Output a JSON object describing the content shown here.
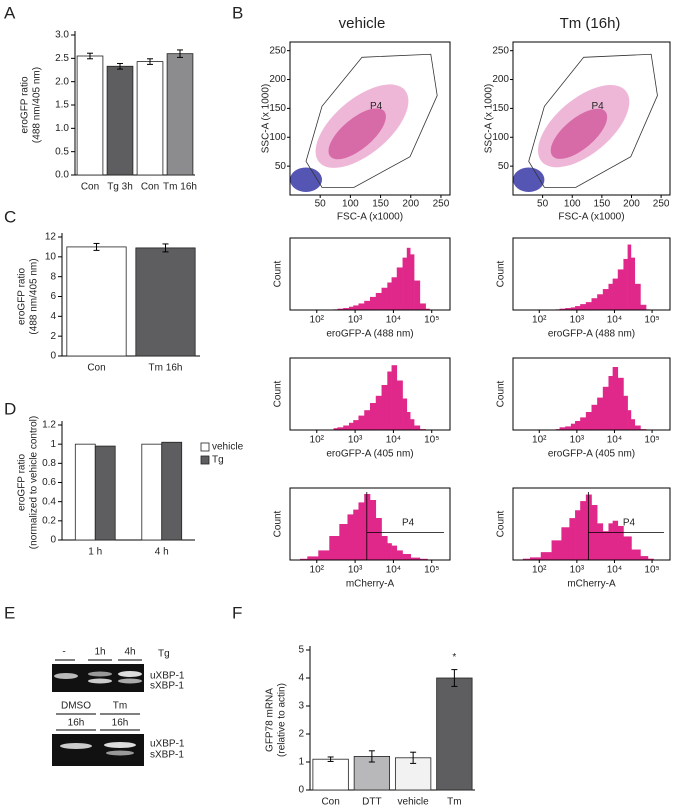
{
  "panel_labels": [
    "A",
    "B",
    "C",
    "D",
    "E",
    "F"
  ],
  "column_headers": [
    "vehicle",
    "Tm (16h)"
  ],
  "gel": {
    "top": {
      "lanes": [
        "-",
        "1h",
        "4h"
      ],
      "treatment": "Tg",
      "bands": [
        "uXBP-1",
        "sXBP-1"
      ]
    },
    "bottom": {
      "lanes": [
        "DMSO",
        "Tm"
      ],
      "times": [
        "16h",
        "16h"
      ],
      "bands": [
        "uXBP-1",
        "sXBP-1"
      ]
    }
  },
  "chart_data": [
    {
      "type": "bar",
      "ylabel": [
        "eroGFP ratio",
        "(488 nm/405 nm)"
      ],
      "categories": [
        "Con",
        "Tg 3h",
        "Con",
        "Tm 16h"
      ],
      "values": [
        2.55,
        2.33,
        2.43,
        2.6
      ],
      "errors": [
        0.06,
        0.06,
        0.06,
        0.08
      ],
      "colors": [
        "#ffffff",
        "#5e5e60",
        "#ffffff",
        "#8c8c8e"
      ],
      "ylim": [
        0,
        3
      ],
      "yticks": [
        {
          "value": 0,
          "label": "0.0"
        },
        0.5,
        {
          "value": 1,
          "label": "1.0"
        },
        1.5,
        {
          "value": 2,
          "label": "2.0"
        },
        2.5,
        {
          "value": 3,
          "label": "3.0"
        }
      ]
    },
    {
      "type": "bar",
      "ylabel": [
        "eroGFP ratio",
        "(488 nm/405 nm)"
      ],
      "categories": [
        "Con",
        "Tm 16h"
      ],
      "values": [
        11,
        10.9
      ],
      "errors": [
        0.35,
        0.4
      ],
      "colors": [
        "#ffffff",
        "#5e5e60"
      ],
      "ylim": [
        0,
        12
      ],
      "yticks": [
        0,
        2,
        4,
        6,
        8,
        10,
        12
      ]
    },
    {
      "type": "bar",
      "ylabel": [
        "eroGFP ratio",
        "(normalized to vehicle control)"
      ],
      "categories": [
        "1 h",
        "4 h"
      ],
      "series": [
        {
          "name": "vehicle",
          "color": "#ffffff",
          "values": [
            1,
            1
          ]
        },
        {
          "name": "Tg",
          "color": "#5e5e60",
          "values": [
            0.98,
            1.02
          ]
        }
      ],
      "ylim": [
        0,
        1.2
      ],
      "yticks": [
        0,
        0.2,
        0.4,
        0.6,
        0.8,
        1,
        1.2
      ]
    },
    {
      "type": "bar",
      "ylabel": [
        "GFP78 mRNA",
        "(relative to actin)"
      ],
      "categories": [
        "Con",
        "DTT",
        "vehicle",
        "Tm"
      ],
      "values": [
        1.1,
        1.2,
        1.15,
        4
      ],
      "errors": [
        0.08,
        0.2,
        0.2,
        0.3
      ],
      "colors": [
        "#ffffff",
        "#b8b8ba",
        "#f2f2f2",
        "#5e5e60"
      ],
      "annotation": "*",
      "ylim": [
        0,
        5
      ],
      "yticks": [
        0,
        1,
        2,
        3,
        4,
        5
      ]
    },
    {
      "type": "scatter",
      "xlabel": "FSC-A (x1000)",
      "ylabel": "SSC-A (x 1000)",
      "gate": "P4",
      "xlim": [
        0,
        265
      ],
      "ylim": [
        0,
        265
      ],
      "xticks": [
        50,
        100,
        150,
        200,
        250
      ],
      "yticks": [
        50,
        100,
        150,
        200,
        250
      ]
    },
    {
      "type": "scatter",
      "xlabel": "FSC-A (x1000)",
      "ylabel": "SSC-A (x 1000)",
      "gate": "P4",
      "xlim": [
        0,
        265
      ],
      "ylim": [
        0,
        265
      ],
      "xticks": [
        50,
        100,
        150,
        200,
        250
      ],
      "yticks": [
        50,
        100,
        150,
        200,
        250
      ]
    },
    {
      "type": "histogram",
      "xlabel": "eroGFP-A (488 nm)",
      "ylabel": "Count",
      "x": [
        300,
        400,
        600,
        800,
        1000,
        1500,
        2000,
        3000,
        4000,
        6000,
        8000,
        10000,
        15000,
        20000,
        25000,
        30000,
        40000,
        60000,
        80000
      ],
      "values": [
        1,
        2,
        3,
        5,
        7,
        10,
        14,
        20,
        26,
        34,
        42,
        50,
        65,
        80,
        95,
        85,
        45,
        10,
        2
      ],
      "color": "#e0288a",
      "log_x": true,
      "xlim": [
        20,
        300000
      ],
      "ylim": [
        0,
        110
      ],
      "xticks": [
        {
          "value": 100,
          "label": "10²"
        },
        {
          "value": 1000,
          "label": "10³"
        },
        {
          "value": 10000,
          "label": "10⁴"
        },
        {
          "value": 100000,
          "label": "10⁵"
        }
      ]
    },
    {
      "type": "histogram",
      "xlabel": "eroGFP-A (488 nm)",
      "ylabel": "Count",
      "x": [
        300,
        400,
        600,
        800,
        1000,
        1500,
        2000,
        3000,
        4000,
        6000,
        8000,
        10000,
        15000,
        20000,
        25000,
        30000,
        40000,
        60000,
        80000
      ],
      "values": [
        1,
        2,
        3,
        4,
        6,
        9,
        12,
        18,
        24,
        32,
        40,
        48,
        62,
        78,
        100,
        80,
        40,
        8,
        1
      ],
      "color": "#e0288a",
      "log_x": true,
      "xlim": [
        20,
        300000
      ],
      "ylim": [
        0,
        110
      ],
      "xticks": [
        {
          "value": 100,
          "label": "10²"
        },
        {
          "value": 1000,
          "label": "10³"
        },
        {
          "value": 10000,
          "label": "10⁴"
        },
        {
          "value": 100000,
          "label": "10⁵"
        }
      ]
    },
    {
      "type": "histogram",
      "xlabel": "eroGFP-A (405 nm)",
      "ylabel": "Count",
      "x": [
        300,
        400,
        600,
        800,
        1000,
        1500,
        2000,
        3000,
        4000,
        6000,
        8000,
        10000,
        15000,
        20000,
        25000,
        30000,
        40000,
        60000,
        80000
      ],
      "values": [
        2,
        3,
        5,
        8,
        11,
        16,
        22,
        30,
        38,
        50,
        65,
        72,
        55,
        35,
        20,
        12,
        5,
        1,
        0
      ],
      "color": "#e0288a",
      "log_x": true,
      "xlim": [
        20,
        300000
      ],
      "ylim": [
        0,
        80
      ],
      "xticks": [
        {
          "value": 100,
          "label": "10²"
        },
        {
          "value": 1000,
          "label": "10³"
        },
        {
          "value": 10000,
          "label": "10⁴"
        },
        {
          "value": 100000,
          "label": "10⁵"
        }
      ]
    },
    {
      "type": "histogram",
      "xlabel": "eroGFP-A (405 nm)",
      "ylabel": "Count",
      "x": [
        300,
        400,
        600,
        800,
        1000,
        1500,
        2000,
        3000,
        4000,
        6000,
        8000,
        10000,
        15000,
        20000,
        25000,
        30000,
        40000,
        60000,
        80000
      ],
      "values": [
        1,
        3,
        4,
        7,
        10,
        14,
        20,
        28,
        36,
        48,
        60,
        70,
        58,
        38,
        22,
        12,
        5,
        1,
        0
      ],
      "color": "#e0288a",
      "log_x": true,
      "xlim": [
        20,
        300000
      ],
      "ylim": [
        0,
        80
      ],
      "xticks": [
        {
          "value": 100,
          "label": "10²"
        },
        {
          "value": 1000,
          "label": "10³"
        },
        {
          "value": 10000,
          "label": "10⁴"
        },
        {
          "value": 100000,
          "label": "10⁵"
        }
      ]
    },
    {
      "type": "histogram",
      "xlabel": "mCherry-A",
      "ylabel": "Count",
      "gate": "P4",
      "x": [
        40,
        80,
        150,
        300,
        500,
        800,
        1000,
        1500,
        2000,
        3000,
        4000,
        6000,
        8000,
        10000,
        15000,
        20000,
        40000,
        60000,
        100000
      ],
      "values": [
        1,
        3,
        8,
        20,
        30,
        38,
        42,
        48,
        55,
        50,
        35,
        20,
        14,
        12,
        8,
        5,
        2,
        1,
        0
      ],
      "color": "#e0288a",
      "log_x": true,
      "xlim": [
        20,
        300000
      ],
      "ylim": [
        0,
        60
      ],
      "xticks": [
        {
          "value": 100,
          "label": "10²"
        },
        {
          "value": 1000,
          "label": "10³"
        },
        {
          "value": 10000,
          "label": "10⁴"
        },
        {
          "value": 100000,
          "label": "10⁵"
        }
      ]
    },
    {
      "type": "histogram",
      "xlabel": "mCherry-A",
      "ylabel": "Count",
      "gate": "P4",
      "x": [
        40,
        80,
        150,
        300,
        500,
        800,
        1000,
        1500,
        2000,
        3000,
        4000,
        6000,
        8000,
        10000,
        15000,
        20000,
        40000,
        60000,
        100000
      ],
      "values": [
        1,
        2,
        6,
        15,
        25,
        32,
        38,
        45,
        50,
        42,
        28,
        22,
        28,
        30,
        26,
        18,
        8,
        3,
        1
      ],
      "color": "#e0288a",
      "log_x": true,
      "xlim": [
        20,
        300000
      ],
      "ylim": [
        0,
        55
      ],
      "xticks": [
        {
          "value": 100,
          "label": "10²"
        },
        {
          "value": 1000,
          "label": "10³"
        },
        {
          "value": 10000,
          "label": "10⁴"
        },
        {
          "value": 100000,
          "label": "10⁵"
        }
      ]
    }
  ]
}
